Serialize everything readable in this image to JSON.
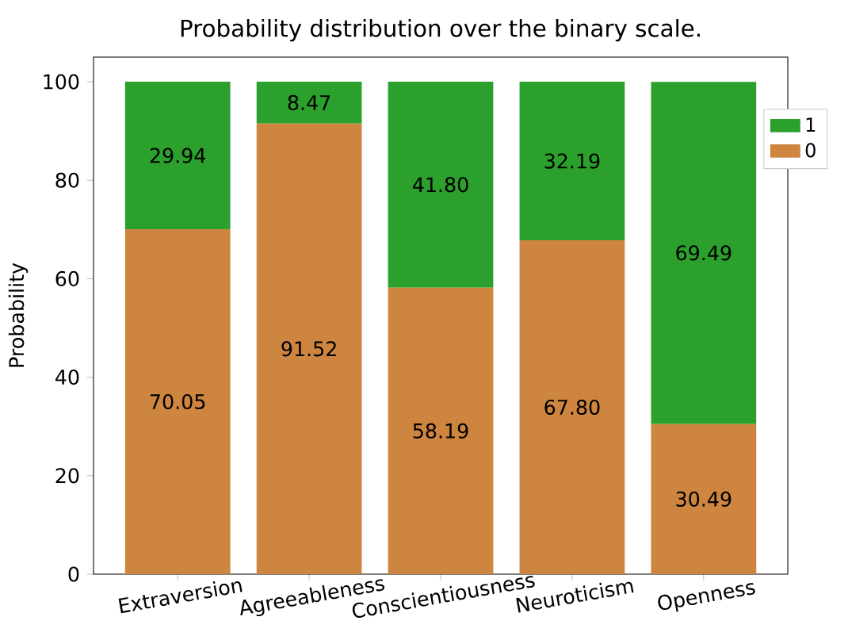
{
  "chart_data": {
    "type": "bar",
    "title": "Probability distribution over the binary scale.",
    "ylabel": "Probability",
    "categories": [
      "Extraversion",
      "Agreeableness",
      "Conscientiousness",
      "Neuroticism",
      "Openness"
    ],
    "stacked": true,
    "ylim": [
      0,
      105
    ],
    "yticks": [
      0,
      20,
      40,
      60,
      80,
      100
    ],
    "legend": "right",
    "grid": false,
    "series": [
      {
        "name": "0",
        "color": "#cd853f",
        "values": [
          70.05,
          91.52,
          58.19,
          67.8,
          30.49
        ],
        "value_labels": [
          "70.05",
          "91.52",
          "58.19",
          "67.80",
          "30.49"
        ]
      },
      {
        "name": "1",
        "color": "#2ca02c",
        "values": [
          29.94,
          8.47,
          41.8,
          32.19,
          69.49
        ],
        "value_labels": [
          "29.94",
          "8.47",
          "41.80",
          "32.19",
          "69.49"
        ]
      }
    ]
  }
}
